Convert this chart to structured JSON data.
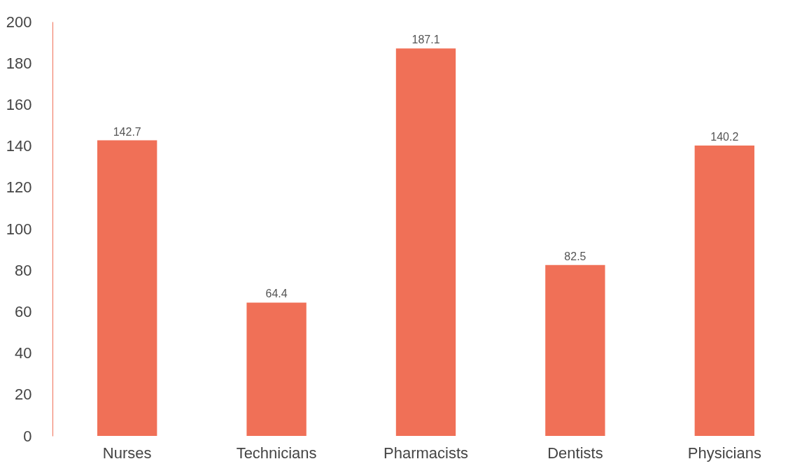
{
  "chart_data": {
    "type": "bar",
    "categories": [
      "Nurses",
      "Technicians",
      "Pharmacists",
      "Dentists",
      "Physicians"
    ],
    "values": [
      142.7,
      64.4,
      187.1,
      82.5,
      140.2
    ],
    "color": "#f07057",
    "ylim": [
      0,
      200
    ],
    "yticks": [
      0,
      20,
      40,
      60,
      80,
      100,
      120,
      140,
      160,
      180,
      200
    ],
    "grid": false,
    "data_labels": true
  }
}
